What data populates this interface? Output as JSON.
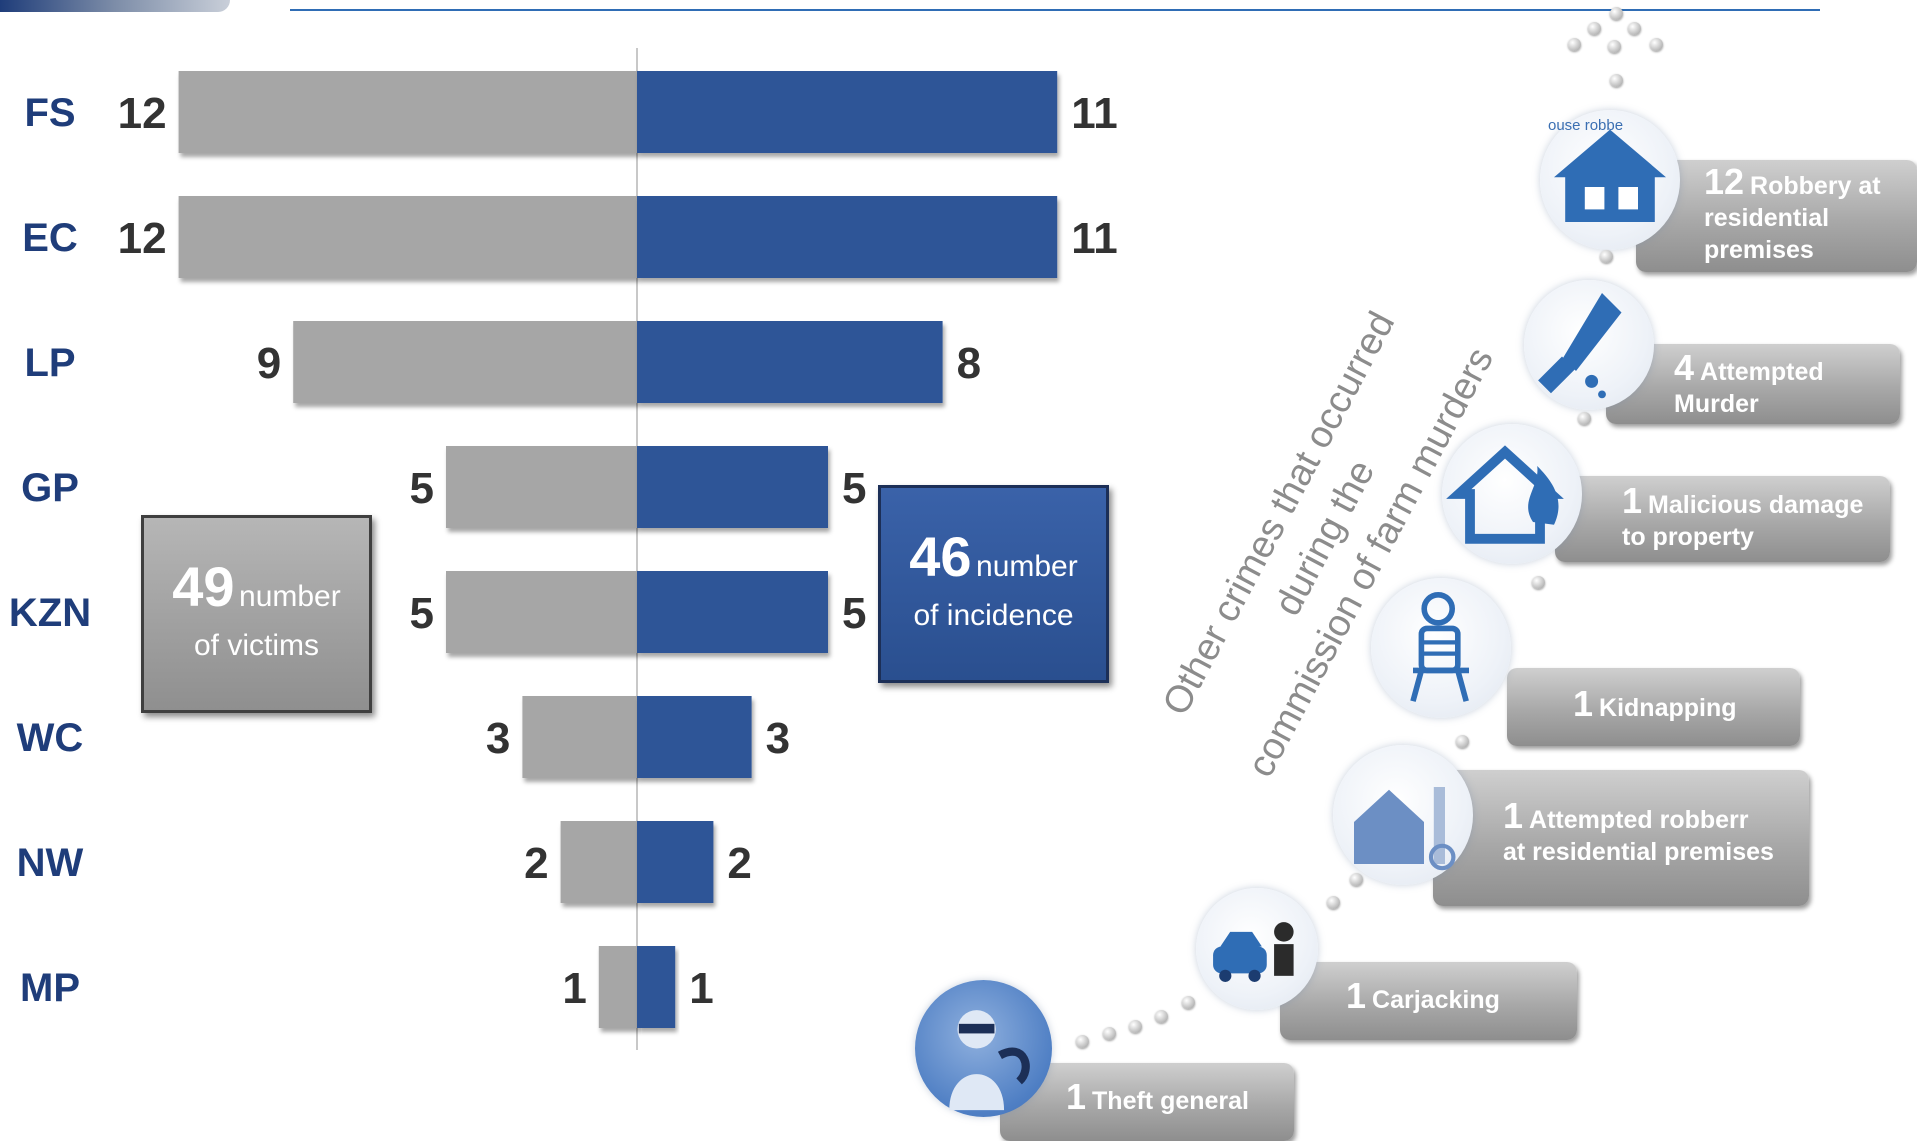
{
  "chart_data": {
    "type": "bar",
    "orientation": "horizontal-diverging",
    "categories": [
      "FS",
      "EC",
      "LP",
      "GP",
      "KZN",
      "WC",
      "NW",
      "MP"
    ],
    "series": [
      {
        "name": "victims",
        "values": [
          12,
          12,
          9,
          5,
          5,
          3,
          2,
          1
        ],
        "color": "#a6a6a6",
        "side": "left"
      },
      {
        "name": "incidence",
        "values": [
          11,
          11,
          8,
          5,
          5,
          3,
          2,
          1
        ],
        "color": "#2f5597",
        "side": "right"
      }
    ],
    "xlim": [
      0,
      12
    ]
  },
  "summary": {
    "victims": {
      "number": "49",
      "label_a": "number",
      "label_b": "of victims"
    },
    "incidence": {
      "number": "46",
      "label_a": "number",
      "label_b": "of incidence"
    }
  },
  "side_title": {
    "line1": "Other crimes that occurred during the",
    "line2": "commission of farm murders"
  },
  "crimes": [
    {
      "count": "12",
      "line1": "Robbery at",
      "line2": "residential",
      "line3": "premises",
      "icon": "house-icon",
      "badge_text": "ouse robbe"
    },
    {
      "count": "4",
      "line1": "Attempted",
      "line2": "Murder",
      "line3": "",
      "icon": "knife-icon"
    },
    {
      "count": "1",
      "line1": "Malicious damage",
      "line2": "to property",
      "line3": "",
      "icon": "burning-house-icon"
    },
    {
      "count": "1",
      "line1": "Kidnapping",
      "line2": "",
      "line3": "",
      "icon": "tied-person-icon"
    },
    {
      "count": "1",
      "line1": "Attempted robberr",
      "line2": "at residential premises",
      "line3": "",
      "icon": "farm-house-icon"
    },
    {
      "count": "1",
      "line1": "Carjacking",
      "line2": "",
      "line3": "",
      "icon": "car-thief-icon"
    },
    {
      "count": "1",
      "line1": "Theft general",
      "line2": "",
      "line3": "",
      "icon": "thief-icon"
    }
  ],
  "colors": {
    "victims": "#a6a6a6",
    "incidence": "#2f5597",
    "label": "#1f3d7a"
  }
}
